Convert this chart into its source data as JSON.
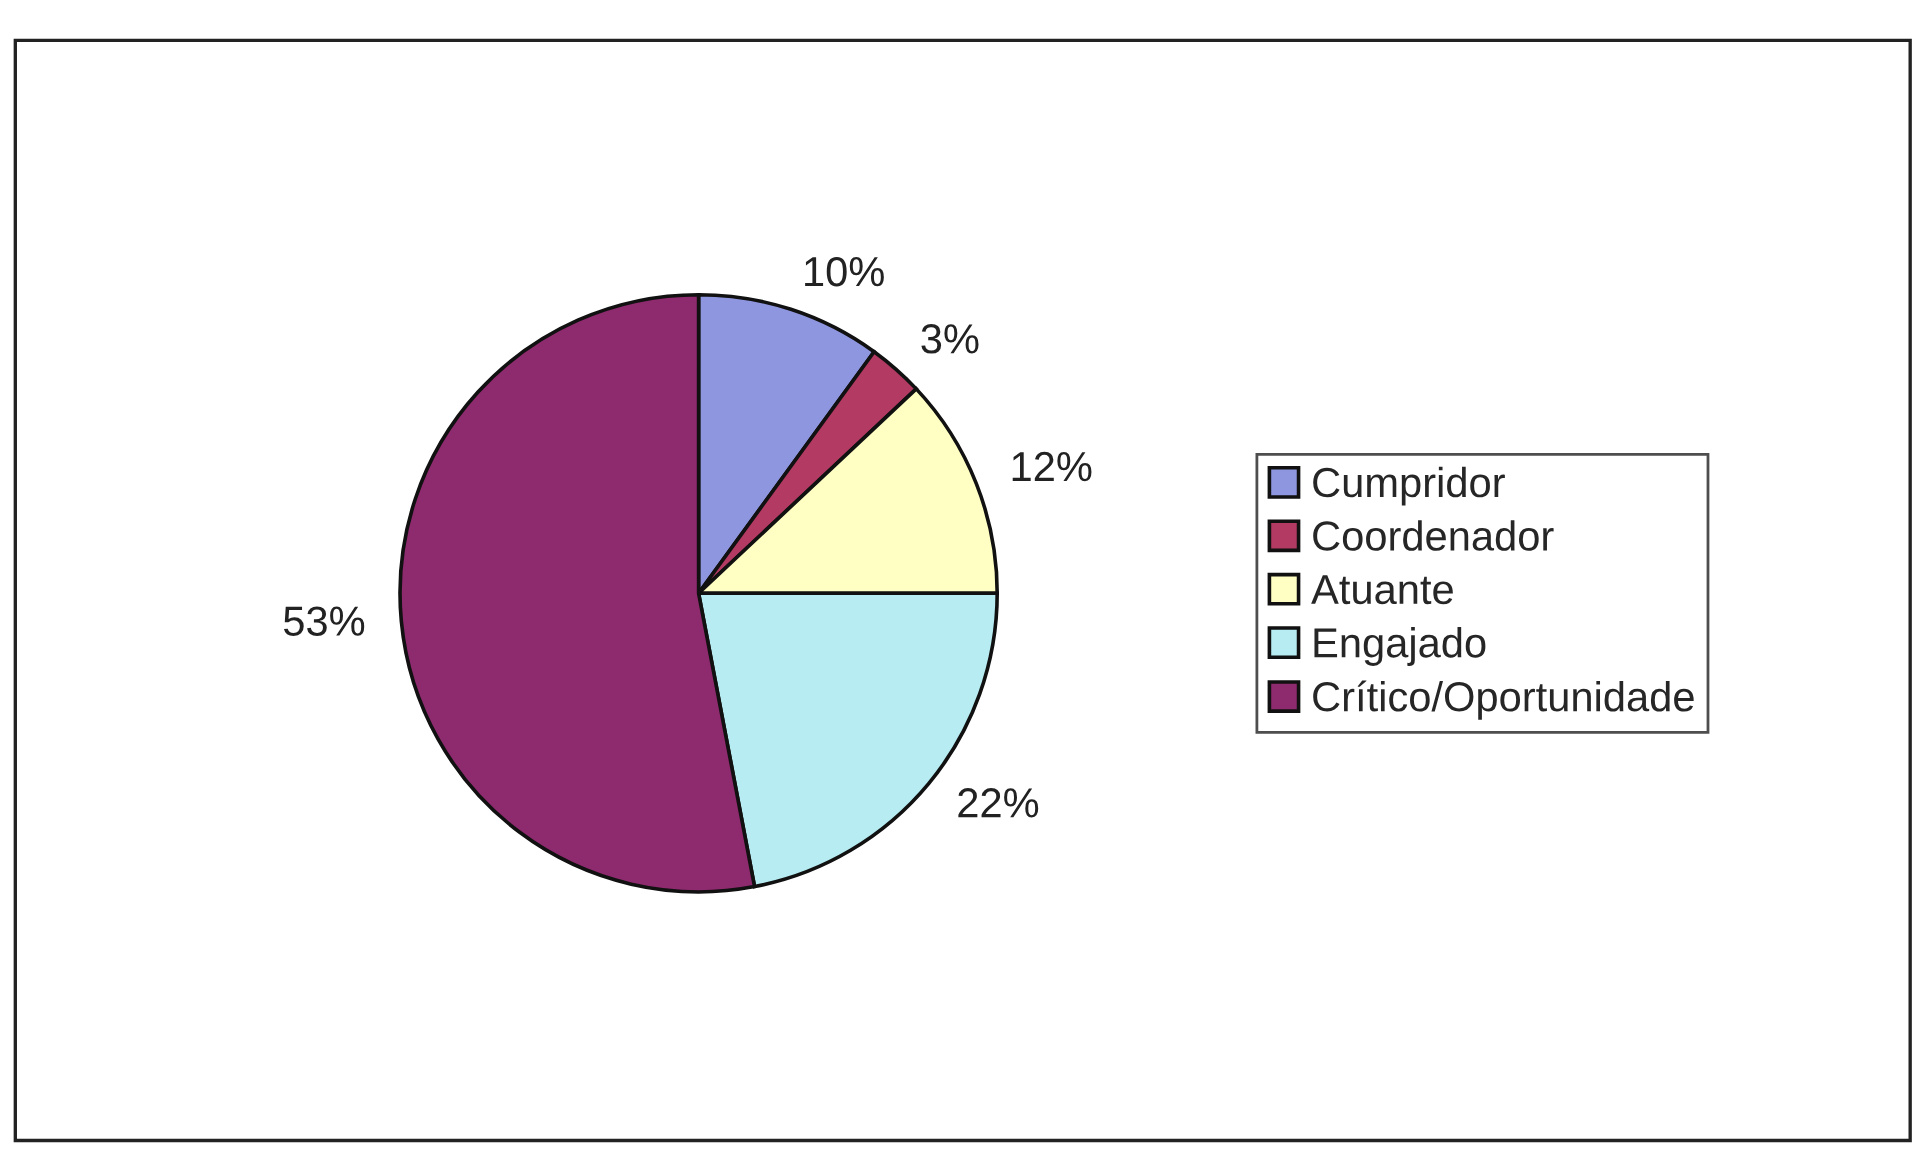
{
  "chart_data": {
    "type": "pie",
    "categories": [
      "Cumpridor",
      "Coordenador",
      "Atuante",
      "Engajado",
      "Crítico/Oportunidade"
    ],
    "values": [
      10,
      3,
      12,
      22,
      53
    ],
    "colors": [
      "#8f96e0",
      "#b23a63",
      "#ffffc4",
      "#b6ecf2",
      "#8e2a6e"
    ],
    "value_labels": [
      "10%",
      "3%",
      "12%",
      "22%",
      "53%"
    ],
    "legend": "right"
  }
}
